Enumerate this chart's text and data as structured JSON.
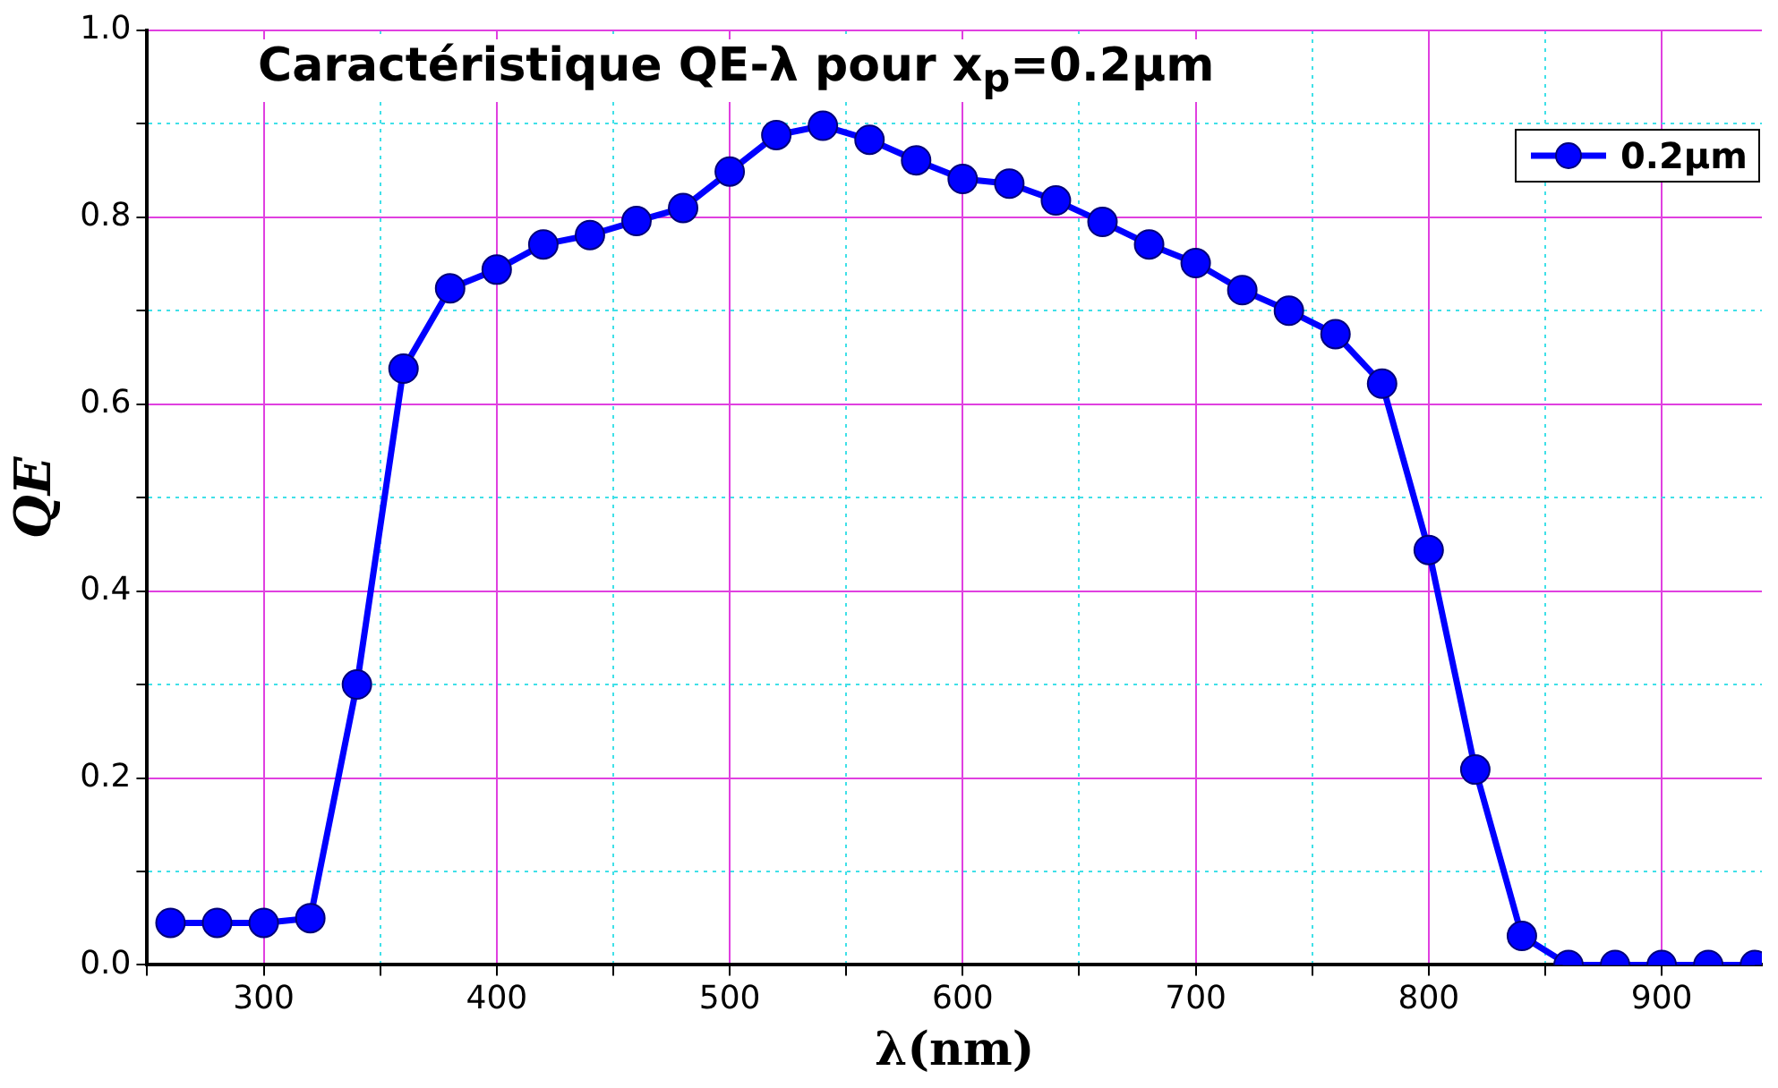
{
  "chart_data": {
    "type": "line",
    "title": "Caractéristique QE-λ pour x$_{p}$=0.2μm",
    "xlabel": "λ(nm)",
    "ylabel": "QE",
    "x": [
      260,
      280,
      300,
      320,
      340,
      360,
      380,
      400,
      420,
      440,
      460,
      480,
      500,
      520,
      540,
      560,
      580,
      600,
      620,
      640,
      660,
      680,
      700,
      720,
      740,
      760,
      780,
      800,
      820,
      840,
      860,
      880,
      900,
      920,
      940
    ],
    "series": [
      {
        "name": "0.2μm",
        "color": "#0000ff",
        "values": [
          0.045,
          0.045,
          0.045,
          0.05,
          0.3,
          0.638,
          0.724,
          0.744,
          0.771,
          0.781,
          0.796,
          0.81,
          0.849,
          0.888,
          0.898,
          0.883,
          0.861,
          0.841,
          0.836,
          0.818,
          0.795,
          0.771,
          0.751,
          0.722,
          0.7,
          0.675,
          0.622,
          0.444,
          0.209,
          0.031,
          0,
          0,
          0,
          0,
          0
        ]
      }
    ],
    "xlim": [
      250,
      943
    ],
    "xticks": [
      {
        "value": 250,
        "label": null
      },
      300,
      {
        "value": 350,
        "label": null
      },
      400,
      {
        "value": 450,
        "label": null
      },
      500,
      {
        "value": 550,
        "label": null
      },
      600,
      {
        "value": 650,
        "label": null
      },
      700,
      {
        "value": 750,
        "label": null
      },
      800,
      {
        "value": 850,
        "label": null
      },
      900
    ],
    "ylim": [
      0,
      1
    ],
    "yticks": [
      {
        "value": 0,
        "label": "0.0"
      },
      {
        "value": 0.1,
        "label": null
      },
      {
        "value": 0.2,
        "label": "0.2"
      },
      {
        "value": 0.3,
        "label": null
      },
      {
        "value": 0.4,
        "label": "0.4"
      },
      {
        "value": 0.5,
        "label": null
      },
      {
        "value": 0.6,
        "label": "0.6"
      },
      {
        "value": 0.7,
        "label": null
      },
      {
        "value": 0.8,
        "label": "0.8"
      },
      {
        "value": 0.9,
        "label": null
      },
      {
        "value": 1,
        "label": "1.0"
      }
    ],
    "grid": true,
    "legend": "top right",
    "marker": "circle",
    "line_style": "solid"
  }
}
